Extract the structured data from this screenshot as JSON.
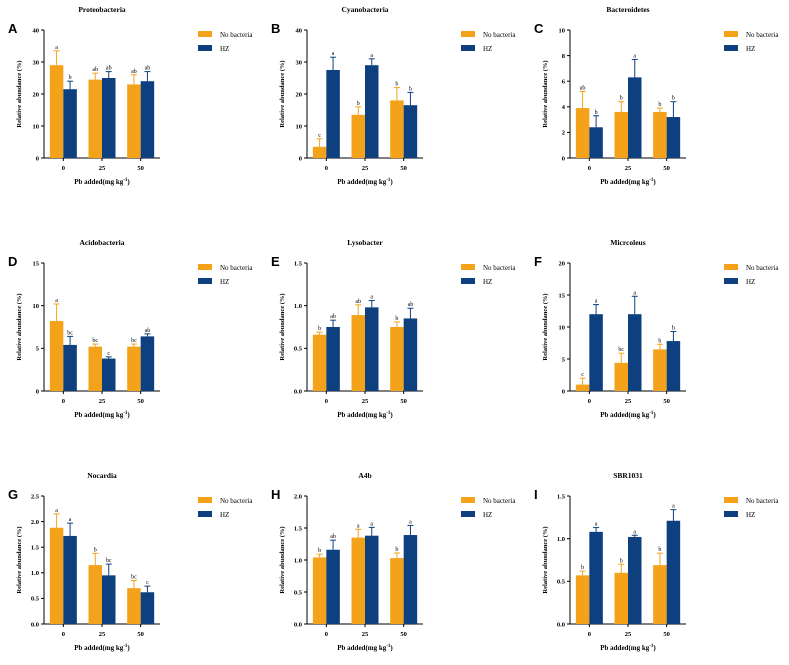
{
  "figure": {
    "legend": [
      "No bacteria",
      "HZ"
    ],
    "colors": {
      "no_bacteria": "#F5A21B",
      "hz": "#0E3F7E"
    },
    "y_axis_label": "Relative abundance (%)",
    "x_axis_label_main": "Pb added(mg kg",
    "x_axis_label_exp": "-1",
    "x_axis_label_close": ")"
  },
  "chart_data": [
    {
      "letter": "A",
      "title": "Proteobacteria",
      "type": "bar",
      "categories": [
        "0",
        "25",
        "50"
      ],
      "ylim": [
        0,
        40
      ],
      "yticks": [
        "0",
        "10",
        "20",
        "30",
        "40"
      ],
      "series": [
        {
          "name": "No bacteria",
          "values": [
            29,
            24.5,
            23
          ],
          "errors": [
            4.5,
            2,
            3
          ],
          "labels": [
            "a",
            "ab",
            "ab"
          ]
        },
        {
          "name": "HZ",
          "values": [
            21.5,
            25,
            24
          ],
          "errors": [
            2.5,
            2,
            3
          ],
          "labels": [
            "b",
            "ab",
            "ab"
          ]
        }
      ]
    },
    {
      "letter": "B",
      "title": "Cyanobacteria",
      "type": "bar",
      "categories": [
        "0",
        "25",
        "50"
      ],
      "ylim": [
        0,
        40
      ],
      "yticks": [
        "0",
        "10",
        "20",
        "30",
        "40"
      ],
      "series": [
        {
          "name": "No bacteria",
          "values": [
            3.5,
            13.5,
            18
          ],
          "errors": [
            2.5,
            2.5,
            4
          ],
          "labels": [
            "c",
            "b",
            "b"
          ]
        },
        {
          "name": "HZ",
          "values": [
            27.5,
            29,
            16.5
          ],
          "errors": [
            4,
            2,
            4
          ],
          "labels": [
            "a",
            "a",
            "b"
          ]
        }
      ]
    },
    {
      "letter": "C",
      "title": "Bacteroidetes",
      "type": "bar",
      "categories": [
        "0",
        "25",
        "50"
      ],
      "ylim": [
        0,
        10
      ],
      "yticks": [
        "0",
        "2",
        "4",
        "6",
        "8",
        "10"
      ],
      "series": [
        {
          "name": "No bacteria",
          "values": [
            3.9,
            3.6,
            3.6
          ],
          "errors": [
            1.3,
            0.8,
            0.3
          ],
          "labels": [
            "ab",
            "b",
            "b"
          ]
        },
        {
          "name": "HZ",
          "values": [
            2.4,
            6.3,
            3.2
          ],
          "errors": [
            0.9,
            1.4,
            1.2
          ],
          "labels": [
            "b",
            "a",
            "b"
          ]
        }
      ]
    },
    {
      "letter": "D",
      "title": "Acidobacteria",
      "type": "bar",
      "categories": [
        "0",
        "25",
        "50"
      ],
      "ylim": [
        0,
        15
      ],
      "yticks": [
        "0",
        "5",
        "10",
        "15"
      ],
      "series": [
        {
          "name": "No bacteria",
          "values": [
            8.2,
            5.2,
            5.2
          ],
          "errors": [
            2,
            0.3,
            0.3
          ],
          "labels": [
            "a",
            "bc",
            "bc"
          ]
        },
        {
          "name": "HZ",
          "values": [
            5.4,
            3.8,
            6.4
          ],
          "errors": [
            1,
            0.2,
            0.3
          ],
          "labels": [
            "bc",
            "c",
            "ab"
          ]
        }
      ]
    },
    {
      "letter": "E",
      "title": "Lysobacter",
      "type": "bar",
      "categories": [
        "0",
        "25",
        "50"
      ],
      "ylim": [
        0,
        1.5
      ],
      "yticks": [
        "0.0",
        "0.5",
        "1.0",
        "1.5"
      ],
      "series": [
        {
          "name": "No bacteria",
          "values": [
            0.66,
            0.89,
            0.75
          ],
          "errors": [
            0.03,
            0.12,
            0.06
          ],
          "labels": [
            "b",
            "ab",
            "b"
          ]
        },
        {
          "name": "HZ",
          "values": [
            0.75,
            0.98,
            0.85
          ],
          "errors": [
            0.08,
            0.08,
            0.12
          ],
          "labels": [
            "ab",
            "a",
            "ab"
          ]
        }
      ]
    },
    {
      "letter": "F",
      "title": "Micrcoleus",
      "type": "bar",
      "categories": [
        "0",
        "25",
        "50"
      ],
      "ylim": [
        0,
        20
      ],
      "yticks": [
        "0",
        "5",
        "10",
        "15",
        "20"
      ],
      "series": [
        {
          "name": "No bacteria",
          "values": [
            1,
            4.4,
            6.5
          ],
          "errors": [
            1,
            1.5,
            0.8
          ],
          "labels": [
            "c",
            "bc",
            "b"
          ]
        },
        {
          "name": "HZ",
          "values": [
            12,
            12,
            7.8
          ],
          "errors": [
            1.5,
            2.8,
            1.5
          ],
          "labels": [
            "a",
            "a",
            "b"
          ]
        }
      ]
    },
    {
      "letter": "G",
      "title": "Nocardia",
      "type": "bar",
      "categories": [
        "0",
        "25",
        "50"
      ],
      "ylim": [
        0,
        2.5
      ],
      "yticks": [
        "0.0",
        "0.5",
        "1.0",
        "1.5",
        "2.0",
        "2.5"
      ],
      "series": [
        {
          "name": "No bacteria",
          "values": [
            1.88,
            1.15,
            0.7
          ],
          "errors": [
            0.27,
            0.23,
            0.15
          ],
          "labels": [
            "a",
            "b",
            "bc"
          ]
        },
        {
          "name": "HZ",
          "values": [
            1.72,
            0.95,
            0.62
          ],
          "errors": [
            0.25,
            0.22,
            0.12
          ],
          "labels": [
            "a",
            "bc",
            "c"
          ]
        }
      ]
    },
    {
      "letter": "H",
      "title": "A4b",
      "type": "bar",
      "categories": [
        "0",
        "25",
        "50"
      ],
      "ylim": [
        0,
        2.0
      ],
      "yticks": [
        "0.0",
        "0.5",
        "1.0",
        "1.5",
        "2.0"
      ],
      "series": [
        {
          "name": "No bacteria",
          "values": [
            1.04,
            1.35,
            1.03
          ],
          "errors": [
            0.05,
            0.13,
            0.08
          ],
          "labels": [
            "b",
            "a",
            "b"
          ]
        },
        {
          "name": "HZ",
          "values": [
            1.16,
            1.38,
            1.39
          ],
          "errors": [
            0.15,
            0.13,
            0.15
          ],
          "labels": [
            "ab",
            "a",
            "a"
          ]
        }
      ]
    },
    {
      "letter": "I",
      "title": "SBR1031",
      "type": "bar",
      "categories": [
        "0",
        "25",
        "50"
      ],
      "ylim": [
        0,
        1.5
      ],
      "yticks": [
        "0.0",
        "0.5",
        "1.0",
        "1.5"
      ],
      "series": [
        {
          "name": "No bacteria",
          "values": [
            0.57,
            0.6,
            0.69
          ],
          "errors": [
            0.05,
            0.1,
            0.14
          ],
          "labels": [
            "b",
            "b",
            "b"
          ]
        },
        {
          "name": "HZ",
          "values": [
            1.08,
            1.02,
            1.21
          ],
          "errors": [
            0.05,
            0.02,
            0.13
          ],
          "labels": [
            "a",
            "a",
            "a"
          ]
        }
      ]
    }
  ]
}
